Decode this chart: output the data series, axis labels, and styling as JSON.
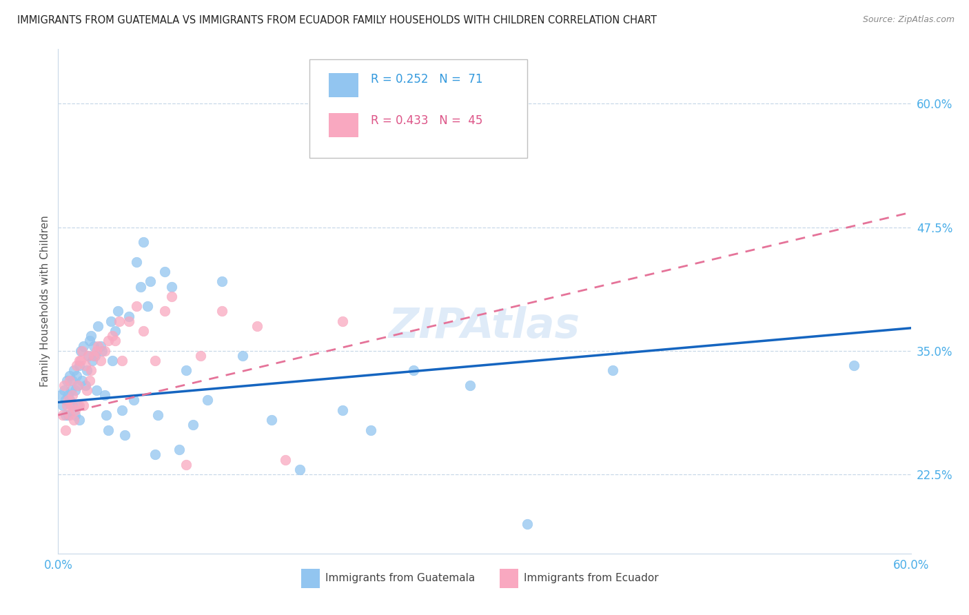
{
  "title": "IMMIGRANTS FROM GUATEMALA VS IMMIGRANTS FROM ECUADOR FAMILY HOUSEHOLDS WITH CHILDREN CORRELATION CHART",
  "source": "Source: ZipAtlas.com",
  "ylabel": "Family Households with Children",
  "xlim": [
    0.0,
    0.6
  ],
  "ylim": [
    0.145,
    0.655
  ],
  "xtick_positions": [
    0.0,
    0.1,
    0.2,
    0.3,
    0.4,
    0.5,
    0.6
  ],
  "xticklabels": [
    "0.0%",
    "",
    "",
    "",
    "",
    "",
    "60.0%"
  ],
  "ytick_positions": [
    0.225,
    0.35,
    0.475,
    0.6
  ],
  "ytick_labels": [
    "22.5%",
    "35.0%",
    "47.5%",
    "60.0%"
  ],
  "r_guatemala": 0.252,
  "n_guatemala": 71,
  "r_ecuador": 0.433,
  "n_ecuador": 45,
  "color_guatemala": "#92C5F0",
  "color_ecuador": "#F9A8C0",
  "line_color_guatemala": "#1565C0",
  "line_color_ecuador": "#E57399",
  "guatemala_x": [
    0.002,
    0.003,
    0.004,
    0.005,
    0.005,
    0.006,
    0.007,
    0.007,
    0.008,
    0.008,
    0.009,
    0.01,
    0.01,
    0.011,
    0.012,
    0.012,
    0.013,
    0.014,
    0.014,
    0.015,
    0.015,
    0.016,
    0.017,
    0.018,
    0.019,
    0.02,
    0.021,
    0.022,
    0.023,
    0.024,
    0.025,
    0.026,
    0.027,
    0.028,
    0.03,
    0.031,
    0.033,
    0.034,
    0.035,
    0.037,
    0.038,
    0.04,
    0.042,
    0.045,
    0.047,
    0.05,
    0.053,
    0.055,
    0.058,
    0.06,
    0.063,
    0.065,
    0.068,
    0.07,
    0.075,
    0.08,
    0.085,
    0.09,
    0.095,
    0.105,
    0.115,
    0.13,
    0.15,
    0.17,
    0.2,
    0.22,
    0.25,
    0.29,
    0.33,
    0.39,
    0.56
  ],
  "guatemala_y": [
    0.305,
    0.295,
    0.31,
    0.3,
    0.285,
    0.32,
    0.305,
    0.285,
    0.325,
    0.3,
    0.31,
    0.295,
    0.32,
    0.33,
    0.285,
    0.31,
    0.325,
    0.315,
    0.295,
    0.335,
    0.28,
    0.35,
    0.32,
    0.355,
    0.315,
    0.33,
    0.345,
    0.36,
    0.365,
    0.34,
    0.355,
    0.345,
    0.31,
    0.375,
    0.355,
    0.35,
    0.305,
    0.285,
    0.27,
    0.38,
    0.34,
    0.37,
    0.39,
    0.29,
    0.265,
    0.385,
    0.3,
    0.44,
    0.415,
    0.46,
    0.395,
    0.42,
    0.245,
    0.285,
    0.43,
    0.415,
    0.25,
    0.33,
    0.275,
    0.3,
    0.42,
    0.345,
    0.28,
    0.23,
    0.29,
    0.27,
    0.33,
    0.315,
    0.175,
    0.33,
    0.335
  ],
  "ecuador_x": [
    0.003,
    0.004,
    0.005,
    0.006,
    0.007,
    0.008,
    0.008,
    0.009,
    0.01,
    0.011,
    0.012,
    0.013,
    0.014,
    0.015,
    0.015,
    0.016,
    0.017,
    0.018,
    0.019,
    0.02,
    0.021,
    0.022,
    0.023,
    0.025,
    0.027,
    0.028,
    0.03,
    0.033,
    0.035,
    0.038,
    0.04,
    0.043,
    0.045,
    0.05,
    0.055,
    0.06,
    0.068,
    0.075,
    0.08,
    0.09,
    0.1,
    0.115,
    0.14,
    0.16,
    0.2
  ],
  "ecuador_y": [
    0.285,
    0.315,
    0.27,
    0.295,
    0.3,
    0.285,
    0.32,
    0.295,
    0.305,
    0.28,
    0.29,
    0.335,
    0.315,
    0.34,
    0.295,
    0.34,
    0.35,
    0.295,
    0.335,
    0.31,
    0.345,
    0.32,
    0.33,
    0.345,
    0.35,
    0.355,
    0.34,
    0.35,
    0.36,
    0.365,
    0.36,
    0.38,
    0.34,
    0.38,
    0.395,
    0.37,
    0.34,
    0.39,
    0.405,
    0.235,
    0.345,
    0.39,
    0.375,
    0.24,
    0.38
  ],
  "guat_line_x": [
    0.0,
    0.6
  ],
  "guat_line_y": [
    0.298,
    0.373
  ],
  "ecua_line_x": [
    0.0,
    0.6
  ],
  "ecua_line_y": [
    0.285,
    0.49
  ]
}
